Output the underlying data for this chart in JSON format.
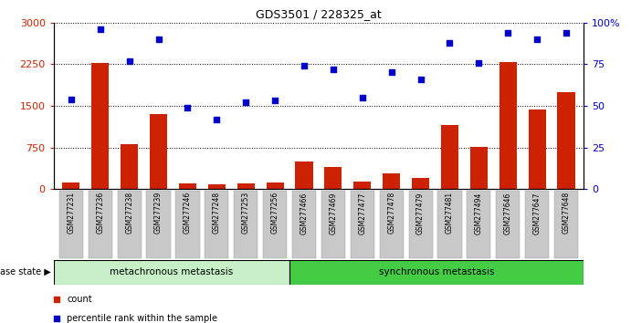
{
  "title": "GDS3501 / 228325_at",
  "categories": [
    "GSM277231",
    "GSM277236",
    "GSM277238",
    "GSM277239",
    "GSM277246",
    "GSM277248",
    "GSM277253",
    "GSM277256",
    "GSM277466",
    "GSM277469",
    "GSM277477",
    "GSM277478",
    "GSM277479",
    "GSM277481",
    "GSM277494",
    "GSM277646",
    "GSM277647",
    "GSM277648"
  ],
  "counts": [
    120,
    2280,
    800,
    1350,
    100,
    80,
    100,
    120,
    490,
    390,
    130,
    280,
    200,
    1150,
    760,
    2290,
    1430,
    1750
  ],
  "percentiles": [
    54,
    96,
    77,
    90,
    49,
    42,
    52,
    53,
    74,
    72,
    55,
    70,
    66,
    88,
    76,
    94,
    90,
    94
  ],
  "group1_label": "metachronous metastasis",
  "group2_label": "synchronous metastasis",
  "group1_count": 8,
  "group2_count": 10,
  "bar_color": "#cc2200",
  "dot_color": "#0000cc",
  "group1_bg": "#c8f0c8",
  "group2_bg": "#44cc44",
  "label_bg": "#c8c8c8",
  "ylim_left": [
    0,
    3000
  ],
  "ylim_right": [
    0,
    100
  ],
  "yticks_left": [
    0,
    750,
    1500,
    2250,
    3000
  ],
  "yticks_right": [
    0,
    25,
    50,
    75,
    100
  ],
  "legend_count_label": "count",
  "legend_pct_label": "percentile rank within the sample",
  "disease_state_label": "disease state",
  "ylabel_left_color": "#cc2200",
  "ylabel_right_color": "#0000cc"
}
